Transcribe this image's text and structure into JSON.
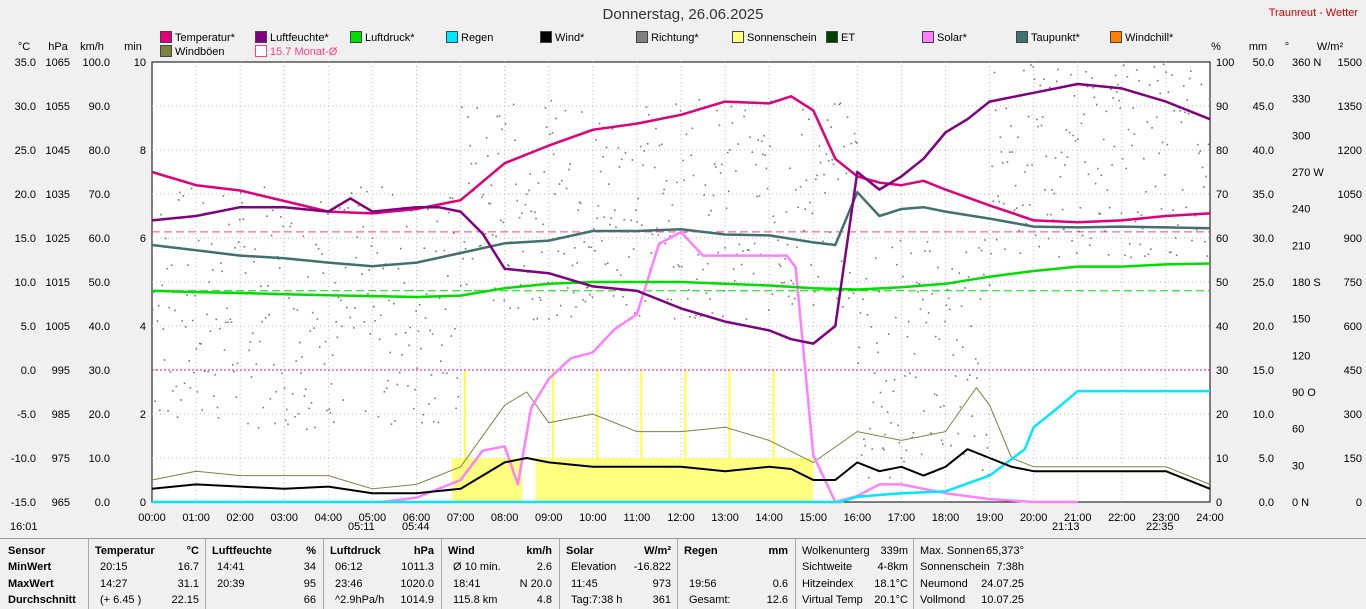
{
  "title": "Donnerstag, 26.06.2025",
  "station": "Traunreut - Wetter",
  "legend": [
    {
      "label": "Temperatur*",
      "color": "#e0007a"
    },
    {
      "label": "Luftfeuchte*",
      "color": "#800080"
    },
    {
      "label": "Luftdruck*",
      "color": "#00dd00"
    },
    {
      "label": "Regen",
      "color": "#00e8ff"
    },
    {
      "label": "Wind*",
      "color": "#000000"
    },
    {
      "label": "Richtung*",
      "color": "#808080"
    },
    {
      "label": "Sonnenschein",
      "color": "#ffff80"
    },
    {
      "label": "ET",
      "color": "#004000"
    },
    {
      "label": "Solar*",
      "color": "#ff80ff"
    },
    {
      "label": "Taupunkt*",
      "color": "#407070"
    },
    {
      "label": "Windchill*",
      "color": "#ff8000"
    },
    {
      "label": "Windböen",
      "color": "#808040"
    },
    {
      "label": "15.7 Monat-Ø",
      "color": "#ff4080"
    }
  ],
  "axes": {
    "left_units": [
      "°C",
      "hPa",
      "km/h",
      "min"
    ],
    "right_units": [
      "%",
      "mm",
      "°",
      "W/m²"
    ],
    "temp_ticks": [
      "35.0",
      "30.0",
      "25.0",
      "20.0",
      "15.0",
      "10.0",
      "5.0",
      "0.0",
      "-5.0",
      "-10.0",
      "-15.0"
    ],
    "hpa_ticks": [
      "1065",
      "1055",
      "1045",
      "1035",
      "1025",
      "1015",
      "1005",
      "995",
      "985",
      "975",
      "965"
    ],
    "kmh_ticks": [
      "100.0",
      "90.0",
      "80.0",
      "70.0",
      "60.0",
      "50.0",
      "40.0",
      "30.0",
      "20.0",
      "10.0",
      "0.0"
    ],
    "min_ticks": [
      "10",
      "8",
      "6",
      "4",
      "2",
      "0"
    ],
    "pct_ticks": [
      "100",
      "90",
      "80",
      "70",
      "60",
      "50",
      "40",
      "30",
      "20",
      "10",
      "0"
    ],
    "mm_ticks": [
      "50.0",
      "45.0",
      "40.0",
      "35.0",
      "30.0",
      "25.0",
      "20.0",
      "15.0",
      "10.0",
      "5.0",
      "0.0"
    ],
    "deg_ticks": [
      "360 N",
      "330",
      "300",
      "270 W",
      "240",
      "210",
      "180 S",
      "150",
      "120",
      "90 O",
      "60",
      "30",
      "0 N"
    ],
    "wm2_ticks": [
      "1500",
      "1350",
      "1200",
      "1050",
      "900",
      "750",
      "600",
      "450",
      "300",
      "150",
      "0"
    ],
    "x_ticks": [
      "00:00",
      "01:00",
      "02:00",
      "03:00",
      "04:00",
      "05:00",
      "06:00",
      "07:00",
      "08:00",
      "09:00",
      "10:00",
      "11:00",
      "12:00",
      "13:00",
      "14:00",
      "15:00",
      "16:00",
      "17:00",
      "18:00",
      "19:00",
      "20:00",
      "21:00",
      "22:00",
      "23:00",
      "24:00"
    ]
  },
  "sun_times": {
    "left": "16:01",
    "sunrise": "05:11",
    "civil_rise": "05:44",
    "sunset": "21:13",
    "civil_set": "22:35"
  },
  "chart_data": {
    "type": "line",
    "x_unit": "hour",
    "series": [
      {
        "name": "Temperatur",
        "unit": "°C",
        "points": [
          [
            0,
            22.5
          ],
          [
            1,
            21.0
          ],
          [
            2,
            20.4
          ],
          [
            3,
            19.2
          ],
          [
            4,
            18.0
          ],
          [
            5,
            17.8
          ],
          [
            6,
            18.3
          ],
          [
            7,
            19.3
          ],
          [
            8,
            23.5
          ],
          [
            9,
            25.5
          ],
          [
            10,
            27.3
          ],
          [
            11,
            28.0
          ],
          [
            12,
            29.0
          ],
          [
            13,
            30.5
          ],
          [
            14,
            30.3
          ],
          [
            14.5,
            31.1
          ],
          [
            15,
            29.5
          ],
          [
            15.5,
            24.0
          ],
          [
            16,
            22.0
          ],
          [
            16.5,
            21.3
          ],
          [
            17,
            21.0
          ],
          [
            17.5,
            21.5
          ],
          [
            18,
            20.5
          ],
          [
            19,
            18.7
          ],
          [
            20,
            17.0
          ],
          [
            21,
            16.8
          ],
          [
            22,
            17.0
          ],
          [
            23,
            17.5
          ],
          [
            24,
            17.8
          ]
        ]
      },
      {
        "name": "Luftfeuchte",
        "unit": "%",
        "points": [
          [
            0,
            64
          ],
          [
            1,
            65
          ],
          [
            2,
            67
          ],
          [
            3,
            67
          ],
          [
            4,
            66
          ],
          [
            4.5,
            69
          ],
          [
            5,
            66
          ],
          [
            6,
            67
          ],
          [
            6.5,
            67
          ],
          [
            7,
            66
          ],
          [
            7.5,
            61
          ],
          [
            8,
            53
          ],
          [
            9,
            52
          ],
          [
            10,
            49
          ],
          [
            11,
            48
          ],
          [
            11.5,
            46
          ],
          [
            12,
            44
          ],
          [
            13,
            41
          ],
          [
            14,
            39
          ],
          [
            14.5,
            37
          ],
          [
            15,
            36
          ],
          [
            15.5,
            40
          ],
          [
            16,
            75
          ],
          [
            16.5,
            71
          ],
          [
            17,
            74
          ],
          [
            17.5,
            78
          ],
          [
            18,
            84
          ],
          [
            18.5,
            87
          ],
          [
            19,
            91
          ],
          [
            20,
            93
          ],
          [
            21,
            95
          ],
          [
            22,
            94
          ],
          [
            23,
            91
          ],
          [
            24,
            87
          ]
        ]
      },
      {
        "name": "Taupunkt",
        "unit": "°C",
        "points": [
          [
            0,
            14.2
          ],
          [
            1,
            13.6
          ],
          [
            2,
            13.0
          ],
          [
            3,
            12.7
          ],
          [
            4,
            12.2
          ],
          [
            5,
            11.8
          ],
          [
            6,
            12.2
          ],
          [
            7,
            13.3
          ],
          [
            8,
            14.4
          ],
          [
            9,
            14.7
          ],
          [
            10,
            15.8
          ],
          [
            11,
            15.8
          ],
          [
            12,
            16.0
          ],
          [
            13,
            15.4
          ],
          [
            14,
            15.3
          ],
          [
            15,
            14.5
          ],
          [
            15.5,
            14.2
          ],
          [
            16,
            20.2
          ],
          [
            16.5,
            17.5
          ],
          [
            17,
            18.3
          ],
          [
            17.5,
            18.5
          ],
          [
            18,
            18.0
          ],
          [
            19,
            17.2
          ],
          [
            20,
            16.3
          ],
          [
            21,
            16.2
          ],
          [
            22,
            16.3
          ],
          [
            23,
            16.2
          ],
          [
            24,
            16.1
          ]
        ]
      },
      {
        "name": "Luftdruck",
        "unit": "hPa",
        "points": [
          [
            0,
            1013.0
          ],
          [
            1,
            1012.7
          ],
          [
            2,
            1012.5
          ],
          [
            3,
            1012.2
          ],
          [
            4,
            1012.0
          ],
          [
            5,
            1011.8
          ],
          [
            6,
            1011.6
          ],
          [
            7,
            1011.9
          ],
          [
            8,
            1013.6
          ],
          [
            9,
            1014.6
          ],
          [
            10,
            1015.0
          ],
          [
            11,
            1015.0
          ],
          [
            12,
            1015.0
          ],
          [
            13,
            1014.6
          ],
          [
            14,
            1014.2
          ],
          [
            15,
            1013.6
          ],
          [
            16,
            1013.3
          ],
          [
            17,
            1013.8
          ],
          [
            18,
            1014.6
          ],
          [
            19,
            1016.2
          ],
          [
            20,
            1017.5
          ],
          [
            21,
            1018.5
          ],
          [
            22,
            1018.5
          ],
          [
            23,
            1019.0
          ],
          [
            24,
            1019.2
          ]
        ]
      },
      {
        "name": "Solar",
        "unit": "W/m²",
        "points": [
          [
            5.2,
            0
          ],
          [
            6,
            15
          ],
          [
            7,
            75
          ],
          [
            7.5,
            175
          ],
          [
            8,
            190
          ],
          [
            8.3,
            60
          ],
          [
            8.6,
            320
          ],
          [
            9,
            420
          ],
          [
            9.5,
            490
          ],
          [
            10,
            510
          ],
          [
            10.5,
            590
          ],
          [
            11,
            640
          ],
          [
            11.5,
            880
          ],
          [
            12,
            920
          ],
          [
            12.5,
            840
          ],
          [
            13,
            840
          ],
          [
            13.5,
            840
          ],
          [
            14,
            840
          ],
          [
            14.4,
            840
          ],
          [
            14.6,
            800
          ],
          [
            15,
            160
          ],
          [
            15.5,
            0
          ],
          [
            16,
            20
          ],
          [
            16.5,
            60
          ],
          [
            17,
            60
          ],
          [
            18,
            30
          ],
          [
            19,
            10
          ],
          [
            20,
            0
          ],
          [
            21,
            0
          ]
        ]
      },
      {
        "name": "Regen",
        "unit": "mm",
        "points": [
          [
            0,
            0
          ],
          [
            15.6,
            0
          ],
          [
            16,
            0.6
          ],
          [
            17,
            1.0
          ],
          [
            18,
            1.2
          ],
          [
            19,
            3.0
          ],
          [
            19.8,
            6.0
          ],
          [
            20,
            8.5
          ],
          [
            20.5,
            10.5
          ],
          [
            21,
            12.6
          ],
          [
            24,
            12.6
          ]
        ]
      },
      {
        "name": "Wind",
        "unit": "km/h",
        "points": [
          [
            0,
            3
          ],
          [
            1,
            4
          ],
          [
            2,
            3.5
          ],
          [
            3,
            3
          ],
          [
            4,
            3.5
          ],
          [
            5,
            2
          ],
          [
            6,
            2
          ],
          [
            7,
            3
          ],
          [
            7.5,
            6
          ],
          [
            8,
            9
          ],
          [
            8.5,
            10
          ],
          [
            9,
            9
          ],
          [
            10,
            8
          ],
          [
            11,
            8
          ],
          [
            12,
            8
          ],
          [
            13,
            7
          ],
          [
            14,
            8
          ],
          [
            14.5,
            7.5
          ],
          [
            15,
            5
          ],
          [
            15.5,
            5
          ],
          [
            16,
            9
          ],
          [
            16.5,
            7
          ],
          [
            17,
            8
          ],
          [
            17.5,
            6
          ],
          [
            18,
            8
          ],
          [
            18.5,
            12
          ],
          [
            19,
            10
          ],
          [
            19.5,
            8
          ],
          [
            20,
            7
          ],
          [
            21,
            7
          ],
          [
            22,
            7
          ],
          [
            23,
            7
          ],
          [
            24,
            3
          ]
        ]
      },
      {
        "name": "Windböen",
        "unit": "km/h",
        "points": [
          [
            0,
            5
          ],
          [
            1,
            7
          ],
          [
            2,
            6
          ],
          [
            3,
            6
          ],
          [
            4,
            6
          ],
          [
            5,
            3
          ],
          [
            6,
            4
          ],
          [
            7,
            8
          ],
          [
            8,
            22
          ],
          [
            8.5,
            25
          ],
          [
            9,
            18
          ],
          [
            10,
            20
          ],
          [
            11,
            16
          ],
          [
            12,
            16
          ],
          [
            13,
            17
          ],
          [
            14,
            14
          ],
          [
            15,
            9
          ],
          [
            16,
            16
          ],
          [
            17,
            14
          ],
          [
            18,
            16
          ],
          [
            18.7,
            26
          ],
          [
            19,
            22
          ],
          [
            19.5,
            10
          ],
          [
            20,
            8
          ],
          [
            21,
            8
          ],
          [
            22,
            8
          ],
          [
            23,
            8
          ],
          [
            24,
            4
          ]
        ]
      }
    ],
    "sunshine_bars": {
      "unit": "min",
      "intervals": [
        [
          6.8,
          8.4
        ],
        [
          8.7,
          15.0
        ]
      ],
      "value": 1.0
    },
    "reference_lines": [
      {
        "name": "15.7 Monat-Ø",
        "unit": "°C",
        "value": 15.7,
        "color": "#ff4080"
      },
      {
        "name": "Luftdruck-Ø",
        "unit": "hPa",
        "value": 1013,
        "color": "#00dd00"
      },
      {
        "name": "0°C",
        "unit": "°C",
        "value": 0,
        "color": "#ff0080"
      }
    ],
    "direction_scatter": {
      "unit": "°",
      "range": [
        0,
        360
      ]
    }
  },
  "stats": {
    "sensor": {
      "h": "Sensor",
      "r": [
        "MinWert",
        "MaxWert",
        "Durchschnitt"
      ]
    },
    "temp": {
      "h": "Temperatur",
      "u": "°C",
      "r": [
        [
          "20:15",
          "16.7"
        ],
        [
          "14:27",
          "31.1"
        ],
        [
          "(+ 6.45 )",
          "22.15"
        ]
      ]
    },
    "hum": {
      "h": "Luftfeuchte",
      "u": "%",
      "r": [
        [
          "14:41",
          "34"
        ],
        [
          "20:39",
          "95"
        ],
        [
          "",
          "66"
        ]
      ]
    },
    "press": {
      "h": "Luftdruck",
      "u": "hPa",
      "r": [
        [
          "06:12",
          "1011.3"
        ],
        [
          "23:46",
          "1020.0"
        ],
        [
          "^2.9hPa/h",
          "1014.9"
        ]
      ]
    },
    "wind": {
      "h": "Wind",
      "u": "km/h",
      "r": [
        [
          "Ø 10 min.",
          "2.6"
        ],
        [
          "18:41",
          "N 20.0"
        ],
        [
          "115.8 km",
          "4.8"
        ]
      ]
    },
    "solar": {
      "h": "Solar",
      "u": "W/m²",
      "r": [
        [
          "Elevation",
          "-16.822"
        ],
        [
          "11:45",
          "973"
        ],
        [
          "Tag:7:38 h",
          "361"
        ]
      ]
    },
    "rain": {
      "h": "Regen",
      "u": "mm",
      "r": [
        [
          "",
          ""
        ],
        [
          "19:56",
          "0.6"
        ],
        [
          "Gesamt:",
          "12.6"
        ]
      ]
    },
    "misc1": [
      [
        "Wolkenunterg",
        "339m"
      ],
      [
        "Sichtweite",
        "4-8km"
      ],
      [
        "Hitzeindex",
        "18.1°C"
      ],
      [
        "Virtual Temp",
        "20.1°C"
      ]
    ],
    "misc2": [
      [
        "Max. Sonnen",
        "65,373°"
      ],
      [
        "Sonnenschein",
        "7:38h"
      ],
      [
        "Neumond",
        "24.07.25"
      ],
      [
        "Vollmond",
        "10.07.25"
      ]
    ]
  }
}
